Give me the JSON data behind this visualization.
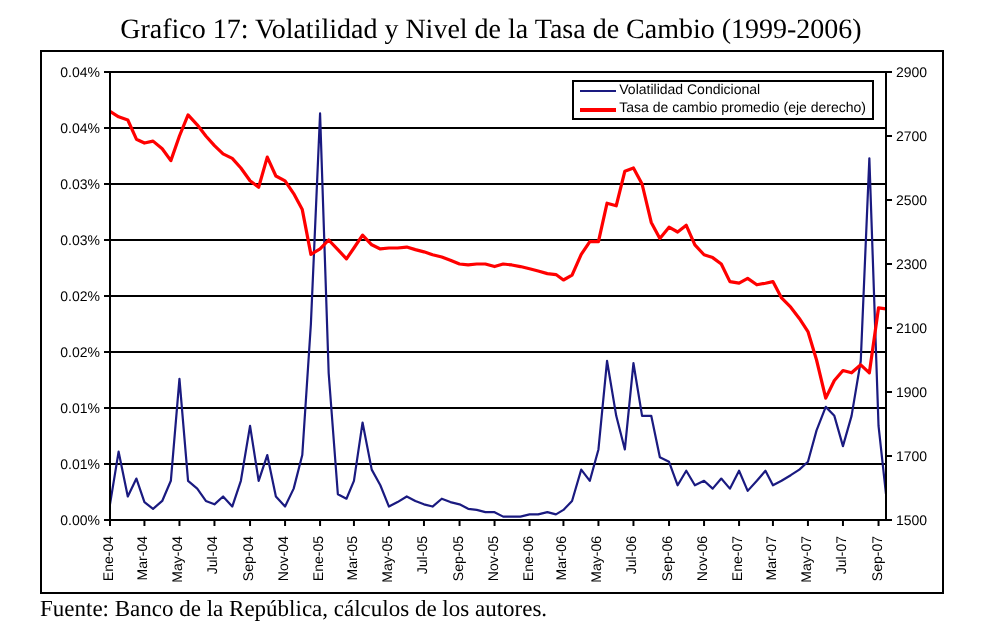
{
  "chart_data": {
    "type": "line",
    "title": "Grafico 17: Volatilidad y Nivel de la Tasa de Cambio (1999-2006)",
    "annotations": [
      "Fuente: Banco de la República, cálculos de los autores."
    ],
    "x": [
      "2004-01-01",
      "2004-01-16",
      "2004-02-01",
      "2004-02-16",
      "2004-03-01",
      "2004-03-16",
      "2004-04-01",
      "2004-04-16",
      "2004-05-01",
      "2004-05-16",
      "2004-06-01",
      "2004-06-16",
      "2004-07-01",
      "2004-07-16",
      "2004-08-01",
      "2004-08-16",
      "2004-09-01",
      "2004-09-16",
      "2004-10-01",
      "2004-10-16",
      "2004-11-01",
      "2004-11-16",
      "2004-12-01",
      "2004-12-16",
      "2005-01-01",
      "2005-01-16",
      "2005-02-01",
      "2005-02-16",
      "2005-03-01",
      "2005-03-16",
      "2005-04-01",
      "2005-04-16",
      "2005-05-01",
      "2005-05-16",
      "2005-06-01",
      "2005-06-16",
      "2005-07-01",
      "2005-07-16",
      "2005-08-01",
      "2005-08-16",
      "2005-09-01",
      "2005-09-16",
      "2005-10-01",
      "2005-10-16",
      "2005-11-01",
      "2005-11-16",
      "2005-12-01",
      "2005-12-16",
      "2006-01-01",
      "2006-01-16",
      "2006-02-01",
      "2006-02-16",
      "2006-03-01",
      "2006-03-16",
      "2006-04-01",
      "2006-04-16",
      "2006-05-01",
      "2006-05-16",
      "2006-06-01",
      "2006-06-16",
      "2006-07-01",
      "2006-07-16",
      "2006-08-01",
      "2006-08-16",
      "2006-09-01",
      "2006-09-16",
      "2006-10-01",
      "2006-10-16",
      "2006-11-01",
      "2006-11-16",
      "2006-12-01",
      "2006-12-16",
      "2007-01-01",
      "2007-01-16",
      "2007-02-01",
      "2007-02-16",
      "2007-03-01",
      "2007-03-16",
      "2007-04-01",
      "2007-04-16",
      "2007-05-01",
      "2007-05-16",
      "2007-06-01",
      "2007-06-16",
      "2007-07-01",
      "2007-07-16",
      "2007-08-01",
      "2007-08-16",
      "2007-09-01",
      "2007-09-14"
    ],
    "series": [
      {
        "name": "Volatilidad Condicional",
        "color": "#1a1a80",
        "values": [
          0.0014,
          0.0061,
          0.0021,
          0.0037,
          0.0016,
          0.001,
          0.0017,
          0.0035,
          0.0126,
          0.0035,
          0.0028,
          0.0017,
          0.0014,
          0.0021,
          0.0012,
          0.0035,
          0.0084,
          0.0035,
          0.0058,
          0.0021,
          0.0012,
          0.0028,
          0.0058,
          0.0175,
          0.0363,
          0.0131,
          0.0023,
          0.0019,
          0.0035,
          0.0087,
          0.0045,
          0.0031,
          0.0012,
          0.0016,
          0.0021,
          0.0017,
          0.0014,
          0.0012,
          0.0019,
          0.0016,
          0.0014,
          0.001,
          0.0009,
          0.0007,
          0.0007,
          0.0003,
          0.0003,
          0.0003,
          0.0005,
          0.0005,
          0.0007,
          0.0005,
          0.0009,
          0.0017,
          0.0045,
          0.0035,
          0.0063,
          0.0142,
          0.0093,
          0.0063,
          0.014,
          0.0093,
          0.0093,
          0.0056,
          0.0052,
          0.0031,
          0.0044,
          0.0031,
          0.0035,
          0.0028,
          0.0037,
          0.0028,
          0.0044,
          0.0026,
          0.0035,
          0.0044,
          0.0031,
          0.0035,
          0.004,
          0.0045,
          0.0052,
          0.008,
          0.0101,
          0.0093,
          0.0066,
          0.0093,
          0.0142,
          0.0323,
          0.0084,
          0.0023
        ]
      },
      {
        "name": "Tasa de cambio promedio (eje derecho)",
        "color": "#ff0000",
        "axis": "y2",
        "values": [
          2777,
          2760,
          2750,
          2690,
          2678,
          2684,
          2660,
          2623,
          2700,
          2766,
          2735,
          2700,
          2670,
          2644,
          2630,
          2600,
          2560,
          2540,
          2634,
          2575,
          2560,
          2520,
          2470,
          2330,
          2347,
          2375,
          2345,
          2316,
          2350,
          2390,
          2360,
          2347,
          2350,
          2350,
          2353,
          2345,
          2338,
          2329,
          2322,
          2312,
          2300,
          2297,
          2300,
          2300,
          2292,
          2300,
          2297,
          2292,
          2285,
          2278,
          2270,
          2267,
          2250,
          2265,
          2330,
          2370,
          2370,
          2490,
          2482,
          2590,
          2600,
          2550,
          2430,
          2380,
          2415,
          2400,
          2421,
          2360,
          2329,
          2320,
          2300,
          2245,
          2240,
          2255,
          2235,
          2240,
          2245,
          2194,
          2165,
          2130,
          2089,
          2000,
          1881,
          1936,
          1967,
          1960,
          1985,
          1960,
          2163,
          2160
        ]
      }
    ],
    "xlim": [
      "2004-01-01",
      "2007-09-14"
    ],
    "xticks": [
      {
        "value": "2004-01",
        "label": "Ene-04"
      },
      {
        "value": "2004-03",
        "label": "Mar-04"
      },
      {
        "value": "2004-05",
        "label": "May-04"
      },
      {
        "value": "2004-07",
        "label": "Jul-04"
      },
      {
        "value": "2004-09",
        "label": "Sep-04"
      },
      {
        "value": "2004-11",
        "label": "Nov-04"
      },
      {
        "value": "2005-01",
        "label": "Ene-05"
      },
      {
        "value": "2005-03",
        "label": "Mar-05"
      },
      {
        "value": "2005-05",
        "label": "May-05"
      },
      {
        "value": "2005-07",
        "label": "Jul-05"
      },
      {
        "value": "2005-09",
        "label": "Sep-05"
      },
      {
        "value": "2005-11",
        "label": "Nov-05"
      },
      {
        "value": "2006-01",
        "label": "Ene-06"
      },
      {
        "value": "2006-03",
        "label": "Mar-06"
      },
      {
        "value": "2006-05",
        "label": "May-06"
      },
      {
        "value": "2006-07",
        "label": "Jul-06"
      },
      {
        "value": "2006-09",
        "label": "Sep-06"
      },
      {
        "value": "2006-11",
        "label": "Nov-06"
      },
      {
        "value": "2007-01",
        "label": "Ene-07"
      },
      {
        "value": "2007-03",
        "label": "Mar-07"
      },
      {
        "value": "2007-05",
        "label": "May-07"
      },
      {
        "value": "2007-07",
        "label": "Jul-07"
      },
      {
        "value": "2007-09",
        "label": "Sep-07"
      }
    ],
    "ylim": [
      0,
      0.04
    ],
    "yticks": [
      {
        "value": 0,
        "label": "0.00%"
      },
      {
        "value": 0.005,
        "label": "0.01%"
      },
      {
        "value": 0.01,
        "label": "0.01%"
      },
      {
        "value": 0.015,
        "label": "0.02%"
      },
      {
        "value": 0.02,
        "label": "0.02%"
      },
      {
        "value": 0.025,
        "label": "0.03%"
      },
      {
        "value": 0.03,
        "label": "0.03%"
      },
      {
        "value": 0.035,
        "label": "0.04%"
      },
      {
        "value": 0.04,
        "label": "0.04%"
      }
    ],
    "y2lim": [
      1500,
      2900
    ],
    "y2ticks": [
      1500,
      1700,
      1900,
      2100,
      2300,
      2500,
      2700,
      2900
    ],
    "grid": "y",
    "legend": "top right",
    "marker": "none",
    "line_style": "solid"
  }
}
